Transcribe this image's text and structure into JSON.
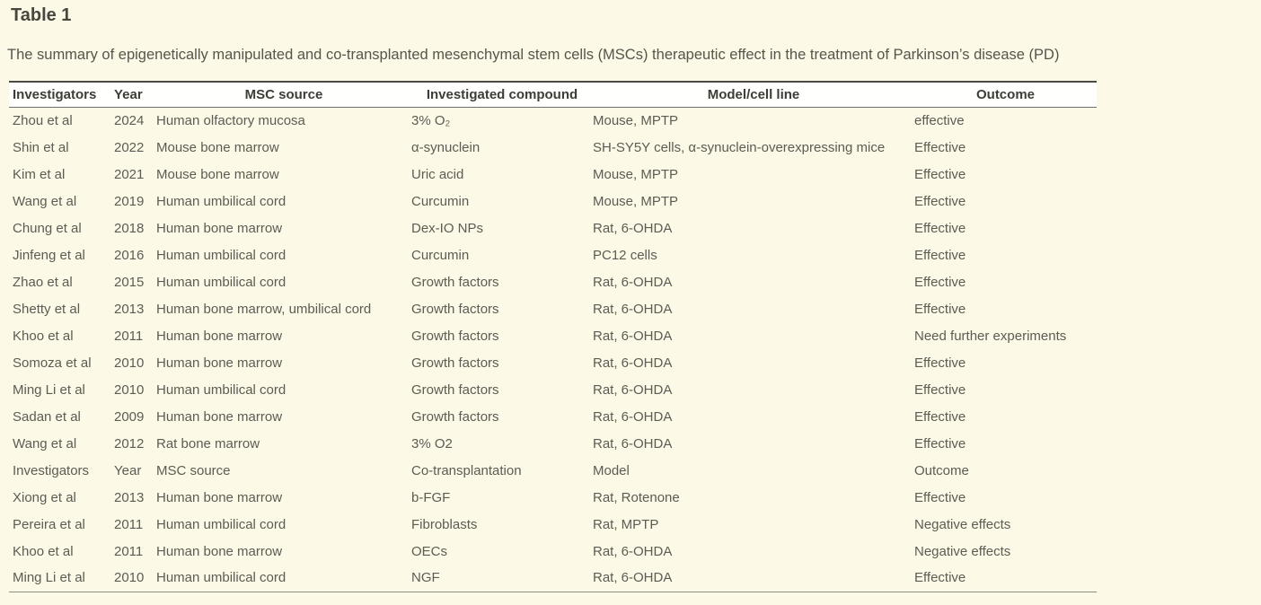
{
  "page": {
    "title": "Table 1",
    "caption": "The summary of epigenetically manipulated and co-transplanted mesenchymal stem cells (MSCs) therapeutic effect in the treatment of Parkinson’s disease (PD)"
  },
  "table": {
    "columns": [
      "Investigators",
      "Year",
      "MSC source",
      "Investigated compound",
      "Model/cell line",
      "Outcome"
    ],
    "column_keys": [
      "investigators",
      "year",
      "msc-source",
      "investigated-compound",
      "model-cell-line",
      "outcome"
    ],
    "rows": [
      [
        "Zhou et al",
        "2024",
        "Human olfactory mucosa",
        "3% O₂",
        "Mouse, MPTP",
        "effective"
      ],
      [
        "Shin et al",
        "2022",
        "Mouse bone marrow",
        "α-synuclein",
        "SH-SY5Y cells, α-synuclein-overexpressing mice",
        "Effective"
      ],
      [
        "Kim et al",
        "2021",
        "Mouse bone marrow",
        "Uric acid",
        "Mouse, MPTP",
        "Effective"
      ],
      [
        "Wang et al",
        "2019",
        "Human umbilical cord",
        "Curcumin",
        "Mouse, MPTP",
        "Effective"
      ],
      [
        "Chung et al",
        "2018",
        "Human bone marrow",
        "Dex-IO NPs",
        "Rat, 6-OHDA",
        "Effective"
      ],
      [
        "Jinfeng et al",
        "2016",
        "Human umbilical cord",
        "Curcumin",
        "PC12 cells",
        "Effective"
      ],
      [
        "Zhao et al",
        "2015",
        "Human umbilical cord",
        "Growth factors",
        "Rat, 6-OHDA",
        "Effective"
      ],
      [
        "Shetty et al",
        "2013",
        "Human bone marrow, umbilical cord",
        "Growth factors",
        "Rat, 6-OHDA",
        "Effective"
      ],
      [
        "Khoo et al",
        "2011",
        "Human bone marrow",
        "Growth factors",
        "Rat, 6-OHDA",
        "Need further experiments"
      ],
      [
        "Somoza et al",
        "2010",
        "Human bone marrow",
        "Growth factors",
        "Rat, 6-OHDA",
        "Effective"
      ],
      [
        "Ming Li et al",
        "2010",
        "Human umbilical cord",
        "Growth factors",
        "Rat, 6-OHDA",
        "Effective"
      ],
      [
        "Sadan et al",
        "2009",
        "Human bone marrow",
        "Growth factors",
        "Rat, 6-OHDA",
        "Effective"
      ],
      [
        "Wang et al",
        "2012",
        "Rat bone marrow",
        "3% O2",
        "Rat, 6-OHDA",
        "Effective"
      ],
      [
        "Investigators",
        "Year",
        "MSC source",
        "Co-transplantation",
        "Model",
        "Outcome"
      ],
      [
        "Xiong et al",
        "2013",
        "Human bone marrow",
        "b-FGF",
        "Rat, Rotenone",
        "Effective"
      ],
      [
        "Pereira et al",
        "2011",
        "Human umbilical cord",
        "Fibroblasts",
        "Rat, MPTP",
        "Negative effects"
      ],
      [
        "Khoo et al",
        "2011",
        "Human bone marrow",
        "OECs",
        "Rat, 6-OHDA",
        "Negative effects"
      ],
      [
        "Ming Li et al",
        "2010",
        "Human umbilical cord",
        "NGF",
        "Rat, 6-OHDA",
        "Effective"
      ]
    ]
  },
  "colors": {
    "page_background": "#fcf9e6",
    "header_band": "#fffffd",
    "title_text": "#47473f",
    "caption_text": "#55554c",
    "header_text": "#3d3d37",
    "body_text": "#5c5c54",
    "top_border": "#4a4a44",
    "header_underline": "#6f6f67",
    "bottom_border": "#8d8d82"
  }
}
